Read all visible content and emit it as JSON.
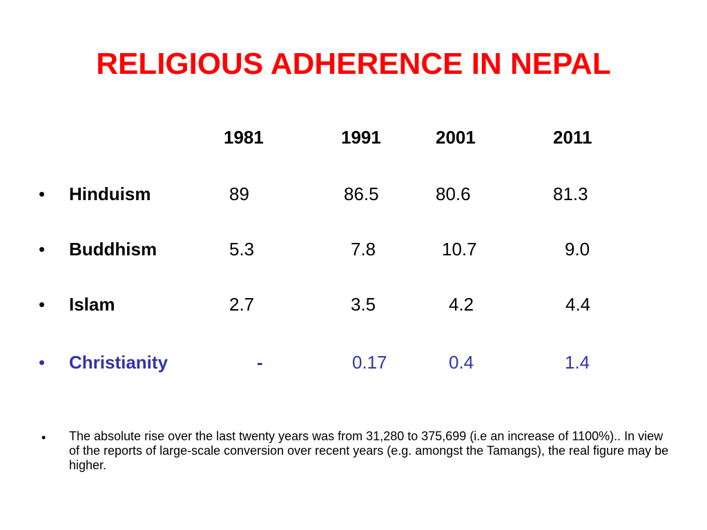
{
  "slide": {
    "title": "RELIGIOUS ADHERENCE IN NEPAL",
    "years": [
      "1981",
      "1991",
      "2001",
      "2011"
    ],
    "bullet_glyph": "•",
    "rows": [
      {
        "label": "Hinduism",
        "values": [
          "89",
          "86.5",
          "80.6",
          "81.3"
        ]
      },
      {
        "label": "Buddhism",
        "values": [
          "5.3",
          "7.8",
          "10.7",
          "9.0"
        ]
      },
      {
        "label": "Islam",
        "values": [
          "2.7",
          "3.5",
          "4.2",
          "4.4"
        ]
      },
      {
        "label": "Christianity",
        "values": [
          "-",
          "0.17",
          "0.4",
          "1.4"
        ]
      }
    ],
    "note": "The absolute rise over the last twenty years was from 31,280 to 375,699 (i.e an increase of 1100%).. In view of the reports of large-scale conversion over recent years (e.g. amongst the Tamangs), the real figure may be higher.",
    "colors": {
      "title": "#ff0000",
      "highlight_row": "#3333aa",
      "text": "#000000",
      "background": "#ffffff"
    }
  }
}
